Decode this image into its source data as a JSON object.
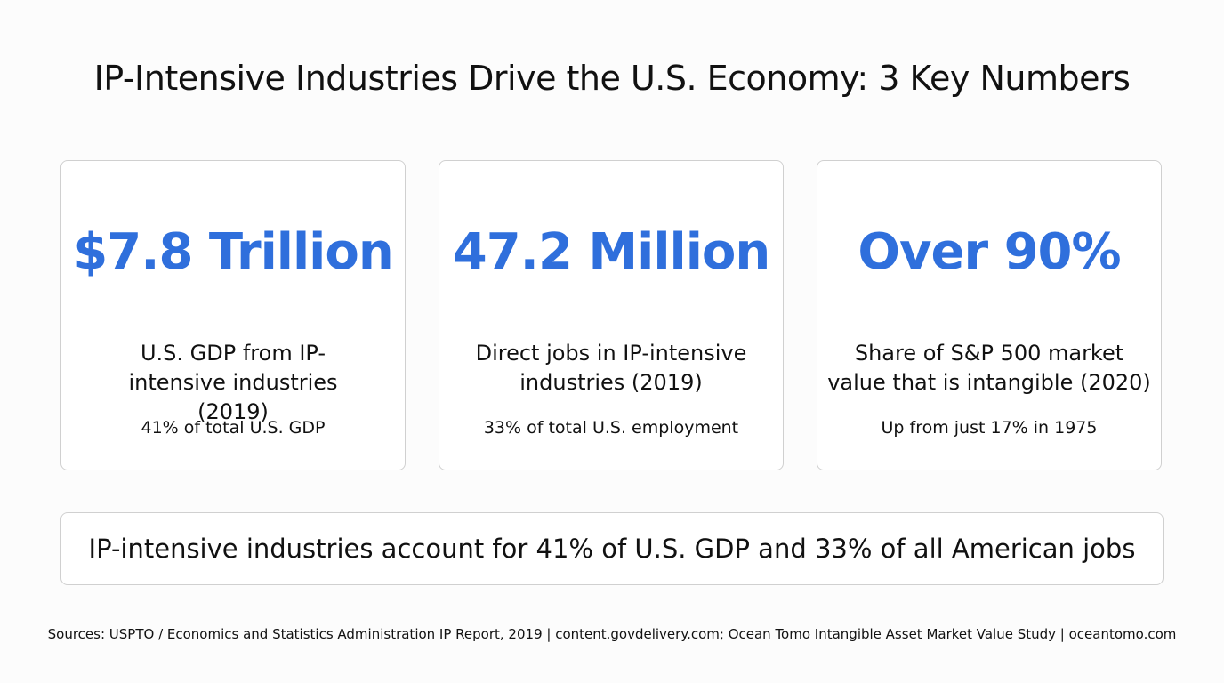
{
  "header": {
    "title": "IP-Intensive Industries Drive the U.S. Economy: 3 Key Numbers"
  },
  "cards": [
    {
      "value": "$7.8 Trillion",
      "description": "U.S. GDP from IP-intensive industries (2019)",
      "note": "41% of total U.S. GDP"
    },
    {
      "value": "47.2 Million",
      "description": "Direct jobs in IP-intensive industries (2019)",
      "note": "33% of total U.S. employment"
    },
    {
      "value": "Over 90%",
      "description": "Share of S&P 500 market value that is intangible (2020)",
      "note": "Up from just 17% in 1975"
    }
  ],
  "summary": "IP-intensive industries account for 41% of U.S. GDP and 33% of all American jobs",
  "footer": {
    "sources": "Sources: USPTO / Economics and Statistics Administration IP Report, 2019 | content.govdelivery.com; Ocean Tomo Intangible Asset Market Value Study | oceantomo.com"
  }
}
